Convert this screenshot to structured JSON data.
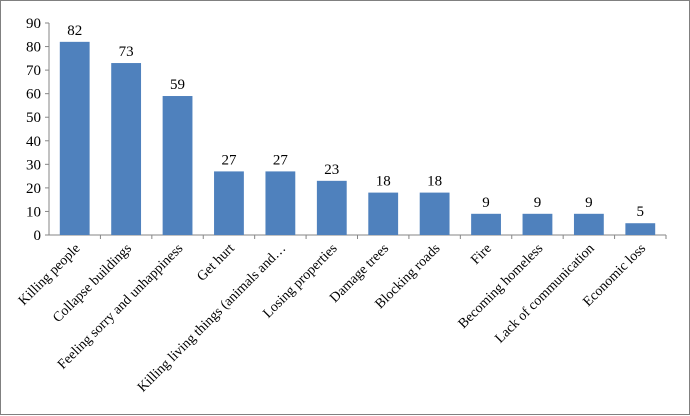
{
  "chart_data": {
    "type": "bar",
    "title": "",
    "xlabel": "",
    "ylabel": "",
    "categories": [
      "Killing people",
      "Collapse buildings",
      "Feeling sorry and unhappiness",
      "Get hurt",
      "Killing living things (animals and…",
      "Losing properties",
      "Damage trees",
      "Blocking roads",
      "Fire",
      "Becoming homeless",
      "Lack of communication",
      "Economic loss"
    ],
    "values": [
      82,
      73,
      59,
      27,
      27,
      23,
      18,
      18,
      9,
      9,
      9,
      5
    ],
    "ylim": [
      0,
      90
    ],
    "yticks": [
      0,
      10,
      20,
      30,
      40,
      50,
      60,
      70,
      80,
      90
    ],
    "grid": false,
    "legend": "none",
    "bar_color": "#4F81BD"
  }
}
